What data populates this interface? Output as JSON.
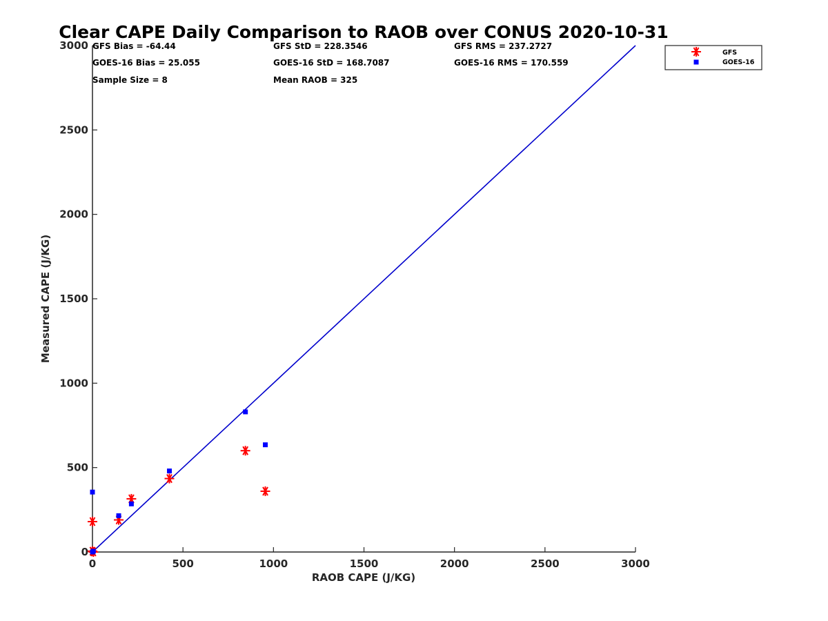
{
  "chart_data": {
    "type": "scatter",
    "title": "Clear CAPE Daily Comparison to RAOB over CONUS 2020-10-31",
    "xlabel": "RAOB CAPE (J/KG)",
    "ylabel": "Measured CAPE (J/KG)",
    "xlim": [
      0,
      3000
    ],
    "ylim": [
      0,
      3000
    ],
    "xticks": [
      "0",
      "500",
      "1000",
      "1500",
      "2000",
      "2500",
      "3000"
    ],
    "yticks": [
      "0",
      "500",
      "1000",
      "1500",
      "2000",
      "2500",
      "3000"
    ],
    "grid": false,
    "legend_position": "top-right, outside plot",
    "reference_line": {
      "x": [
        0,
        3000
      ],
      "y": [
        0,
        3000
      ],
      "color": "#0000cc"
    },
    "series": [
      {
        "name": "GFS",
        "marker": "asterisk",
        "color": "#ff0000",
        "points": [
          [
            0,
            5
          ],
          [
            0,
            180
          ],
          [
            145,
            190
          ],
          [
            215,
            315
          ],
          [
            425,
            435
          ],
          [
            845,
            600
          ],
          [
            955,
            360
          ],
          [
            5,
            0
          ]
        ]
      },
      {
        "name": "GOES-16",
        "marker": "square",
        "color": "#0000ff",
        "points": [
          [
            0,
            355
          ],
          [
            145,
            215
          ],
          [
            215,
            285
          ],
          [
            425,
            480
          ],
          [
            845,
            830
          ],
          [
            955,
            635
          ],
          [
            5,
            5
          ],
          [
            0,
            0
          ]
        ]
      }
    ],
    "stats": [
      "GFS Bias = -64.44",
      "GFS StD = 228.3546",
      "GFS RMS = 237.2727",
      "GOES-16 Bias = 25.055",
      "GOES-16 StD = 168.7087",
      "GOES-16 RMS = 170.559",
      "Sample Size = 8",
      "Mean RAOB = 325"
    ]
  }
}
